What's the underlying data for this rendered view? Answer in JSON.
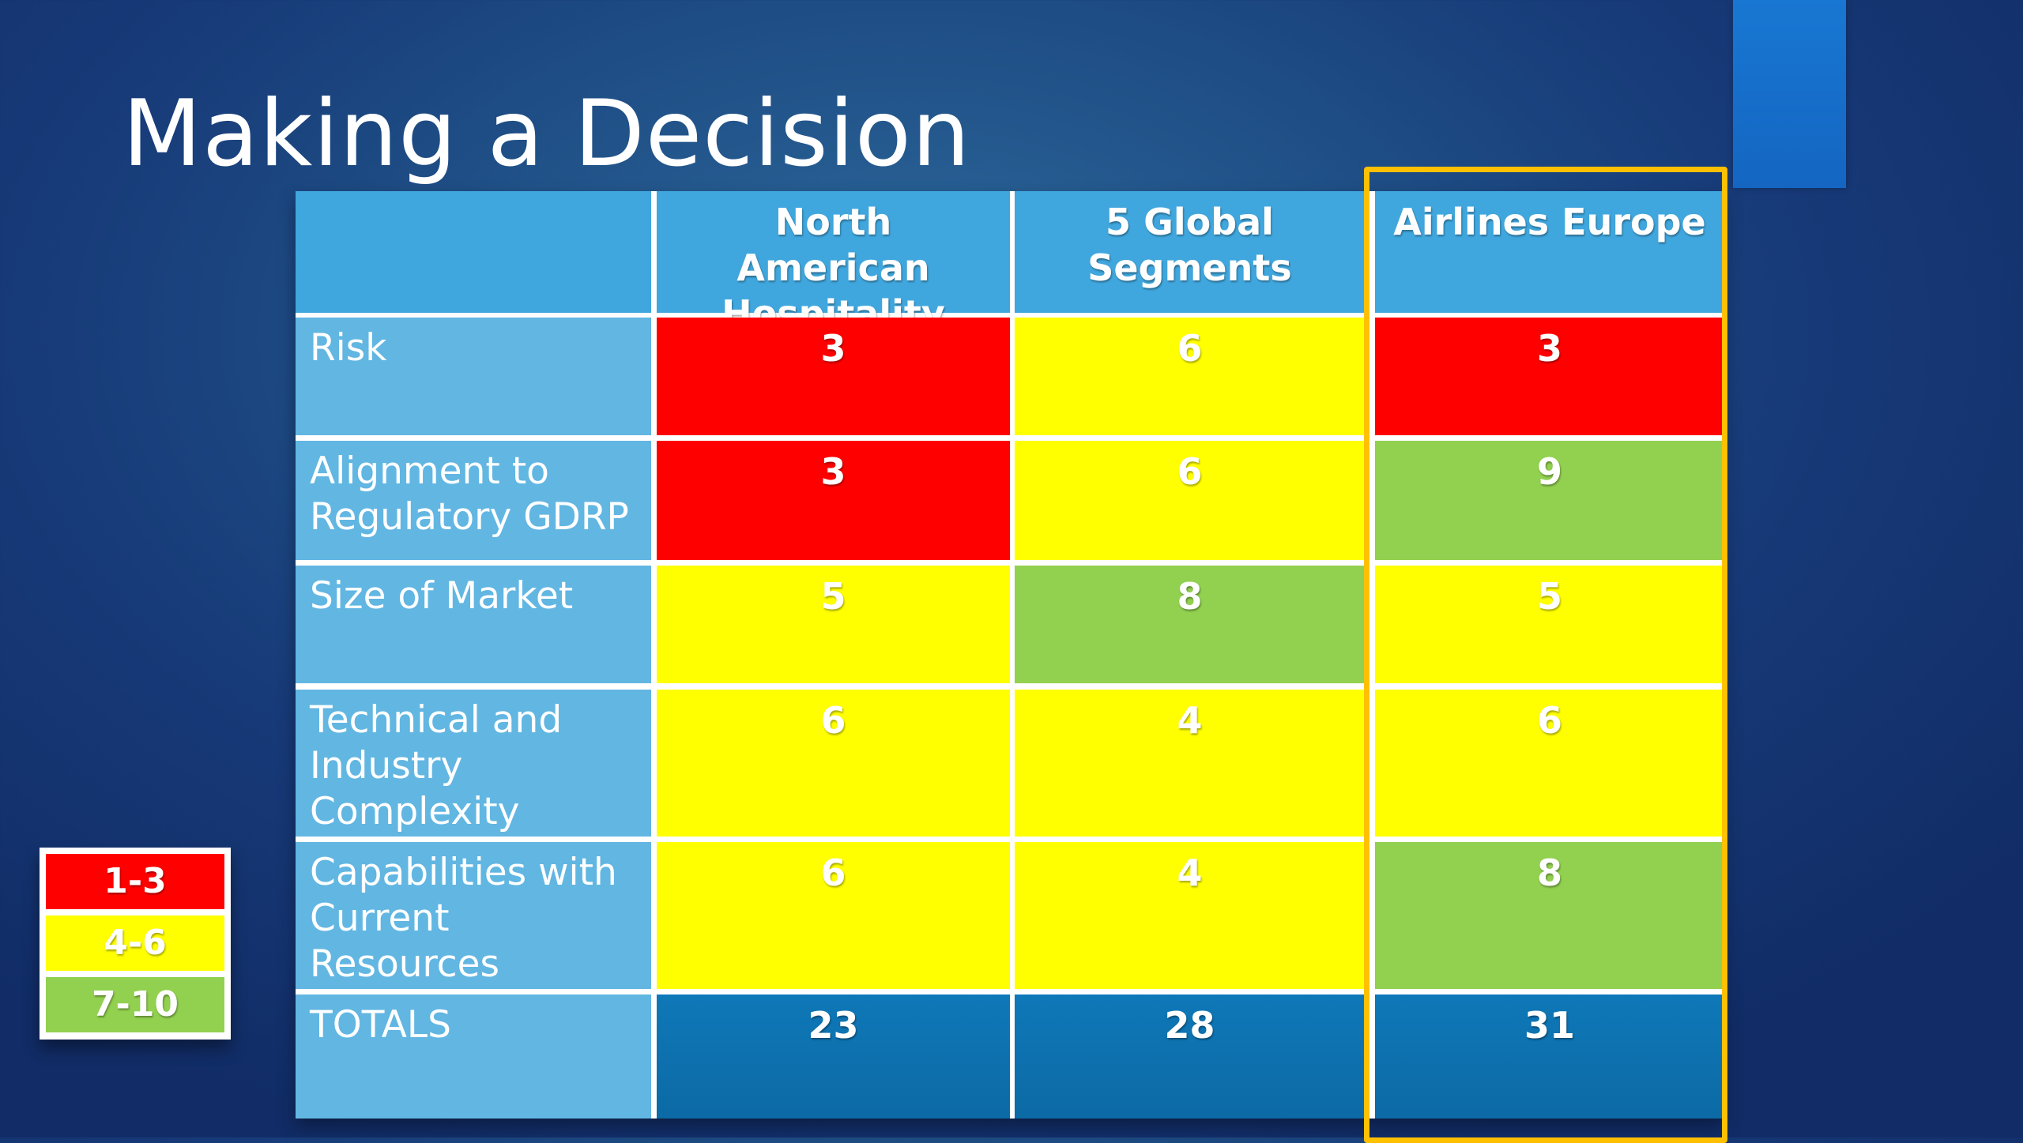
{
  "slide": {
    "title": "Making a Decision"
  },
  "colors": {
    "red": "#ff0000",
    "yellow": "#ffff00",
    "green": "#92d050",
    "header": "#40a7de",
    "row_label": "#62b6e2",
    "totals": "#0f78b8",
    "highlight_border": "#ffc000"
  },
  "table": {
    "columns": [
      "North American Hospitality",
      "5 Global Segments",
      "Airlines Europe"
    ],
    "rows": [
      {
        "label": "Risk",
        "values": [
          "3",
          "6",
          "3"
        ],
        "colors": [
          "red",
          "yellow",
          "red"
        ]
      },
      {
        "label": "Alignment to Regulatory GDRP",
        "values": [
          "3",
          "6",
          "9"
        ],
        "colors": [
          "red",
          "yellow",
          "green"
        ]
      },
      {
        "label": "Size of Market",
        "values": [
          "5",
          "8",
          "5"
        ],
        "colors": [
          "yellow",
          "green",
          "yellow"
        ]
      },
      {
        "label": "Technical and Industry Complexity",
        "values": [
          "6",
          "4",
          "6"
        ],
        "colors": [
          "yellow",
          "yellow",
          "yellow"
        ]
      },
      {
        "label": "Capabilities with Current Resources",
        "values": [
          "6",
          "4",
          "8"
        ],
        "colors": [
          "yellow",
          "yellow",
          "green"
        ]
      },
      {
        "label": "TOTALS",
        "values": [
          "23",
          "28",
          "31"
        ],
        "colors": [
          "totals",
          "totals",
          "totals"
        ]
      }
    ],
    "highlighted_column": "Airlines Europe"
  },
  "legend": [
    {
      "label": "1-3",
      "color": "red"
    },
    {
      "label": "4-6",
      "color": "yellow"
    },
    {
      "label": "7-10",
      "color": "green"
    }
  ]
}
